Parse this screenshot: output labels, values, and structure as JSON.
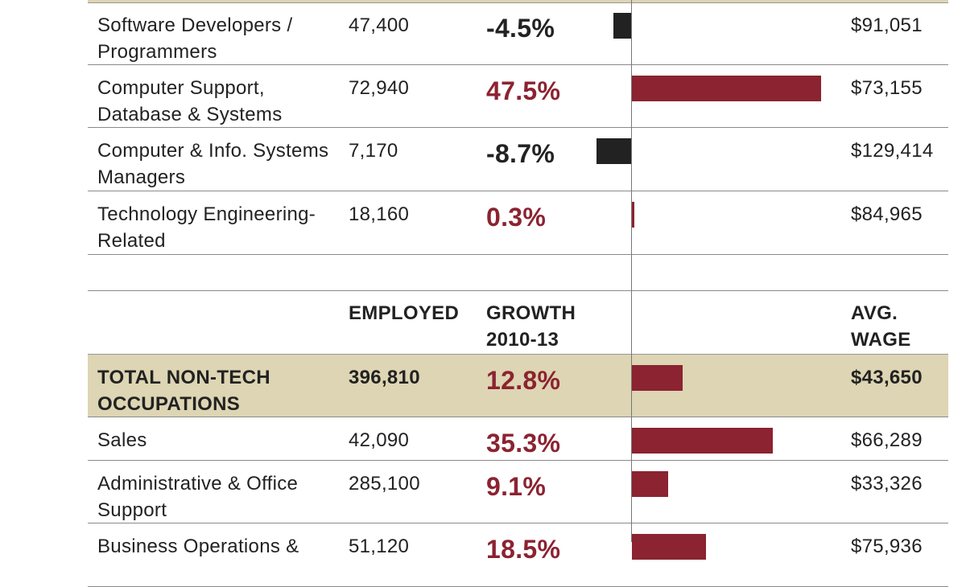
{
  "chart_data": {
    "type": "table",
    "colors": {
      "positive": "#8b2331",
      "negative": "#222222",
      "total_band": "#ddd5b3"
    },
    "bar_axis": "growth percent, zero line centered",
    "tech_rows": [
      {
        "name": "Software Developers / Programmers",
        "employed": "47,400",
        "growth_label": "-4.5%",
        "growth": -4.5,
        "wage": "$91,051"
      },
      {
        "name": "Computer Support, Database & Systems",
        "employed": "72,940",
        "growth_label": "47.5%",
        "growth": 47.5,
        "wage": "$73,155"
      },
      {
        "name": "Computer & Info. Systems Managers",
        "employed": "7,170",
        "growth_label": "-8.7%",
        "growth": -8.7,
        "wage": "$129,414"
      },
      {
        "name": "Technology Engineering-Related",
        "employed": "18,160",
        "growth_label": "0.3%",
        "growth": 0.3,
        "wage": "$84,965"
      }
    ],
    "header": {
      "employed": "EMPLOYED",
      "growth": "GROWTH 2010-13",
      "wage": "AVG. WAGE"
    },
    "nontech_total": {
      "name": "TOTAL NON-TECH OCCUPATIONS",
      "employed": "396,810",
      "growth_label": "12.8%",
      "growth": 12.8,
      "wage": "$43,650"
    },
    "nontech_rows": [
      {
        "name": "Sales",
        "employed": "42,090",
        "growth_label": "35.3%",
        "growth": 35.3,
        "wage": "$66,289"
      },
      {
        "name": "Administrative & Office Support",
        "employed": "285,100",
        "growth_label": "9.1%",
        "growth": 9.1,
        "wage": "$33,326"
      },
      {
        "name": "Business Operations &",
        "employed": "51,120",
        "growth_label": "18.5%",
        "growth": 18.5,
        "wage": "$75,936"
      }
    ]
  }
}
